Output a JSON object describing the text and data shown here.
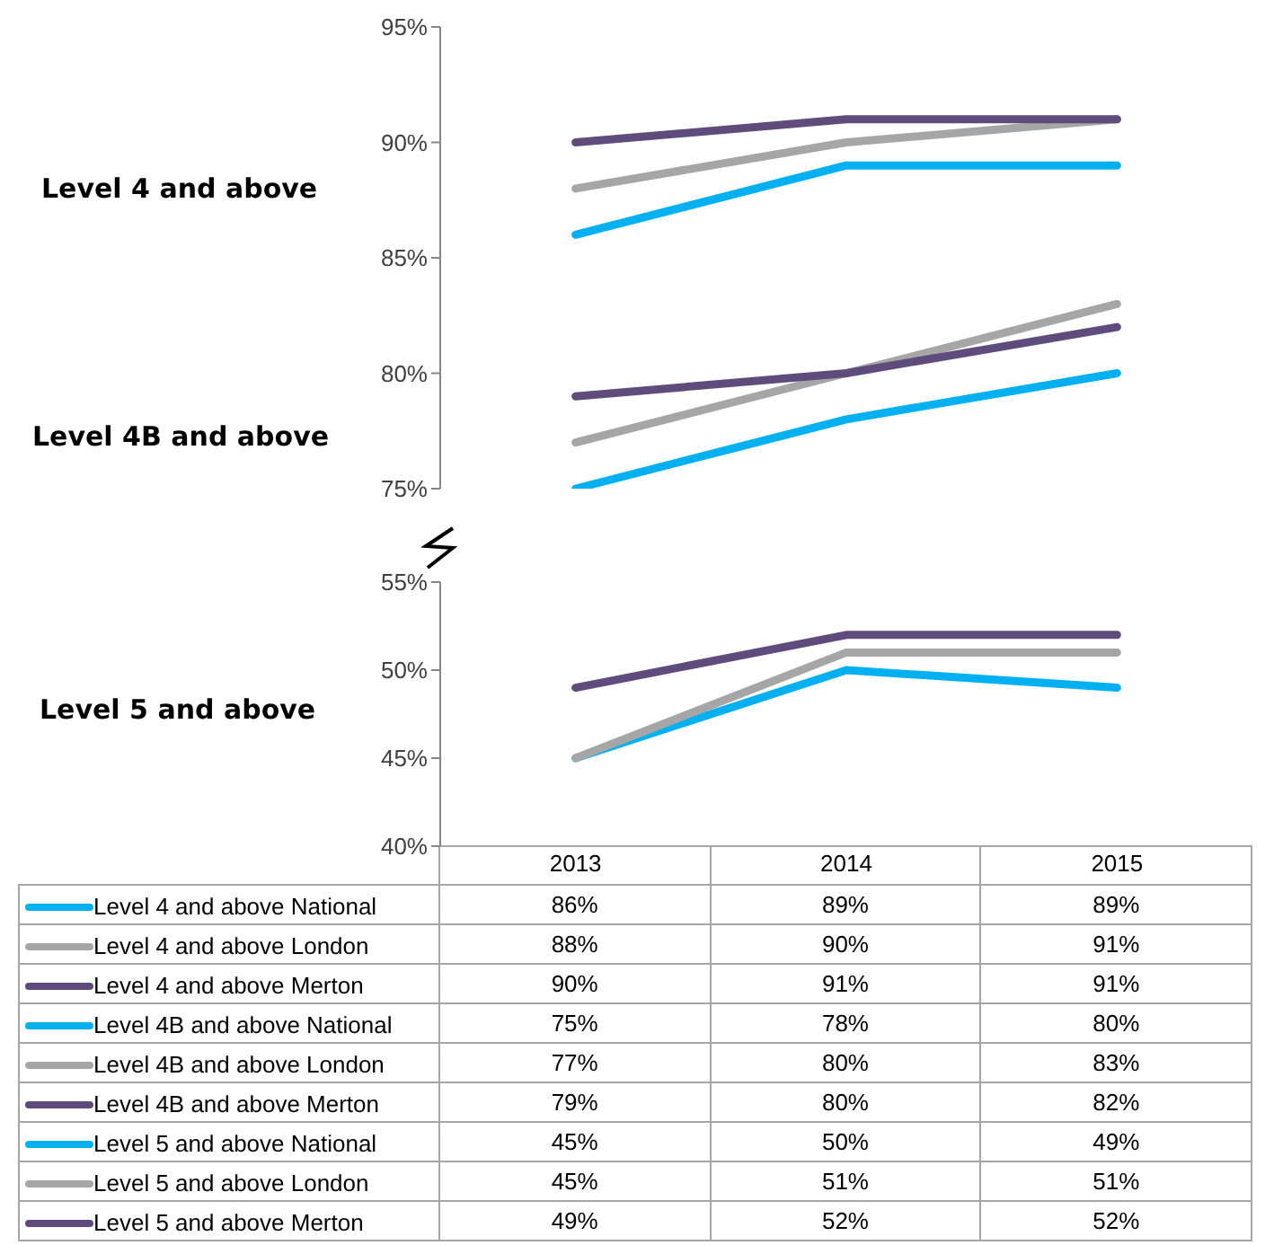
{
  "chart_data": [
    {
      "type": "line",
      "categories": [
        "2013",
        "2014",
        "2015"
      ],
      "ylim": [
        75,
        95
      ],
      "yticks": [
        {
          "value": 75,
          "label": "75%"
        },
        {
          "value": 80,
          "label": "80%"
        },
        {
          "value": 85,
          "label": "85%"
        },
        {
          "value": 90,
          "label": "90%"
        },
        {
          "value": 95,
          "label": "95%"
        }
      ],
      "tick_labels": "y",
      "grid": false,
      "legend": "bottom",
      "marker": "none",
      "line_style": "solid",
      "annotations": [
        "Level 4 and above",
        "Level 4B and above"
      ],
      "series": [
        {
          "name": "Level 4 and above National",
          "color": "#00b0f0",
          "values": [
            86,
            89,
            89
          ],
          "value_labels": [
            "86%",
            "89%",
            "89%"
          ]
        },
        {
          "name": "Level 4 and above London",
          "color": "#a6a6a6",
          "values": [
            88,
            90,
            91
          ],
          "value_labels": [
            "88%",
            "90%",
            "91%"
          ]
        },
        {
          "name": "Level 4 and above Merton",
          "color": "#5f4b7c",
          "values": [
            90,
            91,
            91
          ],
          "value_labels": [
            "90%",
            "91%",
            "91%"
          ]
        },
        {
          "name": "Level 4B and above National",
          "color": "#00b0f0",
          "values": [
            75,
            78,
            80
          ],
          "value_labels": [
            "75%",
            "78%",
            "80%"
          ]
        },
        {
          "name": "Level 4B and above London",
          "color": "#a6a6a6",
          "values": [
            77,
            80,
            83
          ],
          "value_labels": [
            "77%",
            "80%",
            "83%"
          ]
        },
        {
          "name": "Level 4B and above Merton",
          "color": "#5f4b7c",
          "values": [
            79,
            80,
            82
          ],
          "value_labels": [
            "79%",
            "80%",
            "82%"
          ]
        }
      ]
    },
    {
      "type": "line",
      "categories": [
        "2013",
        "2014",
        "2015"
      ],
      "ylim": [
        40,
        55
      ],
      "yticks": [
        {
          "value": 40,
          "label": "40%"
        },
        {
          "value": 45,
          "label": "45%"
        },
        {
          "value": 50,
          "label": "50%"
        },
        {
          "value": 55,
          "label": "55%"
        }
      ],
      "grid": false,
      "legend": "bottom",
      "marker": "none",
      "line_style": "solid",
      "annotations": [
        "Level 5 and above"
      ],
      "series": [
        {
          "name": "Level 5 and above National",
          "color": "#00b0f0",
          "values": [
            45,
            50,
            49
          ],
          "value_labels": [
            "45%",
            "50%",
            "49%"
          ]
        },
        {
          "name": "Level 5 and above London",
          "color": "#a6a6a6",
          "values": [
            45,
            51,
            51
          ],
          "value_labels": [
            "45%",
            "51%",
            "51%"
          ]
        },
        {
          "name": "Level 5 and above Merton",
          "color": "#5f4b7c",
          "values": [
            49,
            52,
            52
          ],
          "value_labels": [
            "49%",
            "52%",
            "52%"
          ]
        }
      ]
    }
  ]
}
